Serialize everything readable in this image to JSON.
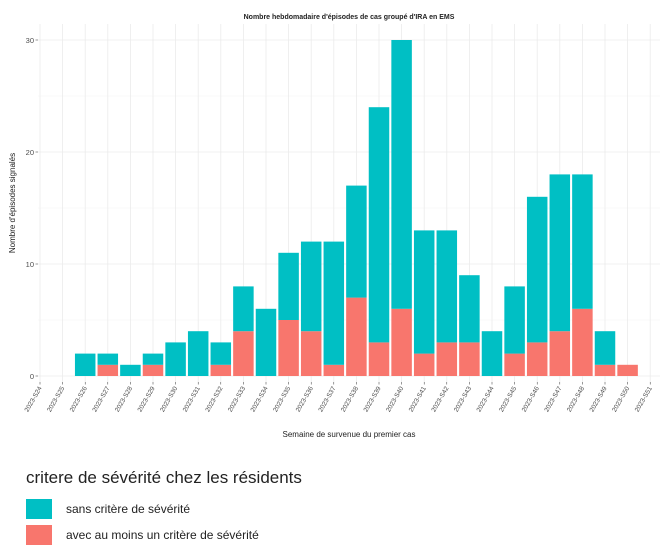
{
  "chart_data": {
    "type": "bar",
    "stacked": true,
    "title": "Nombre hebdomadaire d'épisodes de cas groupé d'IRA en EMS",
    "xlabel": "Semaine de survenue du premier cas",
    "ylabel": "Nombre d'épisodes signalés",
    "ylim": [
      0,
      31.5
    ],
    "yticks": [
      0,
      10,
      20,
      30
    ],
    "grid": true,
    "categories": [
      "2023-S24",
      "2023-S25",
      "2023-S26",
      "2023-S27",
      "2023-S28",
      "2023-S29",
      "2023-S30",
      "2023-S31",
      "2023-S32",
      "2023-S33",
      "2023-S34",
      "2023-S35",
      "2023-S36",
      "2023-S37",
      "2023-S38",
      "2023-S39",
      "2023-S40",
      "2023-S41",
      "2023-S42",
      "2023-S43",
      "2023-S44",
      "2023-S45",
      "2023-S46",
      "2023-S47",
      "2023-S48",
      "2023-S49",
      "2023-S50",
      "2023-S51"
    ],
    "series": [
      {
        "name": "avec au moins un critère de sévérité",
        "color": "#F8766D",
        "values": [
          0,
          0,
          0,
          1,
          0,
          1,
          0,
          0,
          1,
          4,
          0,
          5,
          4,
          1,
          7,
          3,
          6,
          2,
          3,
          3,
          0,
          2,
          3,
          4,
          6,
          1,
          1,
          0
        ]
      },
      {
        "name": "sans critère de sévérité",
        "color": "#00BFC4",
        "values": [
          0,
          0,
          2,
          1,
          1,
          1,
          3,
          4,
          2,
          4,
          6,
          6,
          8,
          11,
          10,
          21,
          24,
          11,
          10,
          6,
          4,
          6,
          13,
          14,
          12,
          3,
          0,
          0
        ]
      }
    ],
    "legend": {
      "title": "critere de sévérité chez les résidents",
      "position": "bottom",
      "items": [
        {
          "label": "sans critère de sévérité",
          "color": "#00BFC4"
        },
        {
          "label": "avec au moins un critère de sévérité",
          "color": "#F8766D"
        }
      ]
    }
  }
}
